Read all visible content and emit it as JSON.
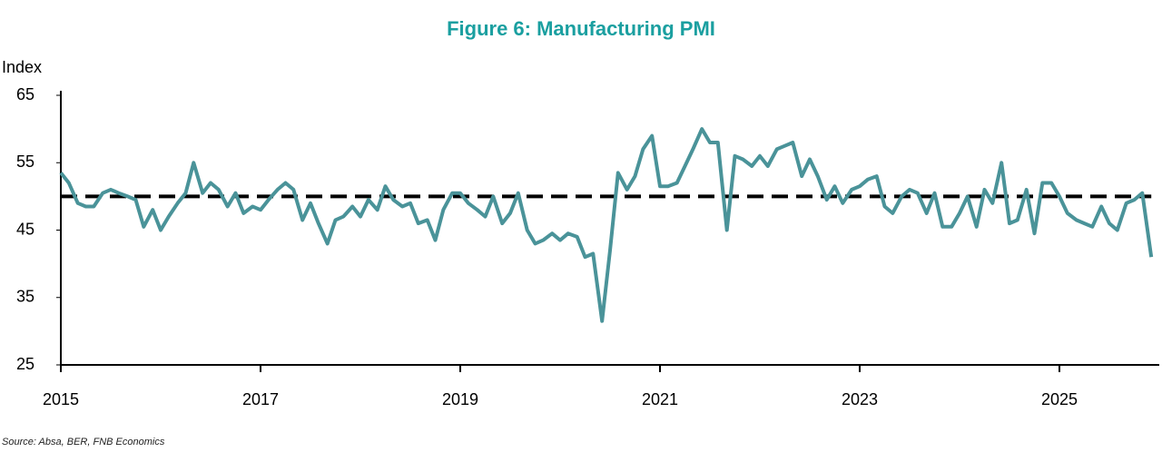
{
  "chart_data": {
    "type": "line",
    "title": "Figure 6: Manufacturing PMI",
    "y_label": "Index",
    "source": "Source: Absa, BER, FNB Economics",
    "x": [
      2015.0,
      2015.08,
      2015.17,
      2015.25,
      2015.33,
      2015.42,
      2015.5,
      2015.58,
      2015.67,
      2015.75,
      2015.83,
      2015.92,
      2016.0,
      2016.08,
      2016.17,
      2016.25,
      2016.33,
      2016.42,
      2016.5,
      2016.58,
      2016.67,
      2016.75,
      2016.83,
      2016.92,
      2017.0,
      2017.08,
      2017.17,
      2017.25,
      2017.33,
      2017.42,
      2017.5,
      2017.58,
      2017.67,
      2017.75,
      2017.83,
      2017.92,
      2018.0,
      2018.08,
      2018.17,
      2018.25,
      2018.33,
      2018.42,
      2018.5,
      2018.58,
      2018.67,
      2018.75,
      2018.83,
      2018.92,
      2019.0,
      2019.08,
      2019.17,
      2019.25,
      2019.33,
      2019.42,
      2019.5,
      2019.58,
      2019.67,
      2019.75,
      2019.83,
      2019.92,
      2020.0,
      2020.08,
      2020.17,
      2020.25,
      2020.33,
      2020.42,
      2020.5,
      2020.58,
      2020.67,
      2020.75,
      2020.83,
      2020.92,
      2021.0,
      2021.08,
      2021.17,
      2021.25,
      2021.33,
      2021.42,
      2021.5,
      2021.58,
      2021.67,
      2021.75,
      2021.83,
      2021.92,
      2022.0,
      2022.08,
      2022.17,
      2022.25,
      2022.33,
      2022.42,
      2022.5,
      2022.58,
      2022.67,
      2022.75,
      2022.83,
      2022.92,
      2023.0,
      2023.08,
      2023.17,
      2023.25,
      2023.33,
      2023.42,
      2023.5,
      2023.58,
      2023.67,
      2023.75,
      2023.83,
      2023.92,
      2024.0,
      2024.08,
      2024.17,
      2024.25,
      2024.33,
      2024.42,
      2024.5,
      2024.58,
      2024.67,
      2024.75,
      2024.83,
      2024.92,
      2025.0,
      2025.08,
      2025.17,
      2025.25,
      2025.33,
      2025.42,
      2025.5,
      2025.58,
      2025.67,
      2025.75,
      2025.83,
      2025.92
    ],
    "series": [
      {
        "name": "PMI",
        "color": "#4a9399",
        "values": [
          53.5,
          52,
          49,
          48.5,
          48.5,
          50.5,
          51,
          50.5,
          50,
          49.5,
          45.5,
          48,
          45,
          47,
          49,
          50.5,
          55,
          50.5,
          52,
          51,
          48.5,
          50.5,
          47.5,
          48.5,
          48,
          49.5,
          51,
          52,
          51,
          46.5,
          49,
          46,
          43,
          46.5,
          47,
          48.5,
          47,
          49.5,
          48,
          51.5,
          49.5,
          48.5,
          49,
          46,
          46.5,
          43.5,
          48,
          50.5,
          50.5,
          49,
          48,
          47,
          50,
          46,
          47.5,
          50.5,
          45,
          43,
          43.5,
          44.5,
          43.5,
          44.5,
          44,
          41,
          41.5,
          31.5,
          42,
          53.5,
          51,
          53,
          57,
          59,
          51.5,
          51.5,
          52,
          54.5,
          57,
          60,
          58,
          58,
          45,
          56,
          55.5,
          54.5,
          56,
          54.5,
          57,
          57.5,
          58,
          53,
          55.5,
          53,
          49.5,
          51.5,
          49,
          51,
          51.5,
          52.5,
          53,
          48.5,
          47.5,
          50,
          51,
          50.5,
          47.5,
          50.5,
          45.5,
          45.5,
          47.5,
          50,
          45.5,
          51,
          49,
          55,
          46,
          46.5,
          51,
          44.5,
          52,
          52,
          50,
          47.5,
          46.5,
          46,
          45.5,
          48.5,
          46,
          45,
          49,
          49.5,
          50.5,
          41
        ]
      }
    ],
    "reference_line": {
      "value": 50,
      "color": "#000000"
    },
    "xlim": [
      2015,
      2026
    ],
    "xticks": [
      2015,
      2017,
      2019,
      2021,
      2023,
      2025
    ],
    "ylim": [
      25,
      65
    ],
    "yticks": [
      25,
      35,
      45,
      55,
      65
    ]
  }
}
